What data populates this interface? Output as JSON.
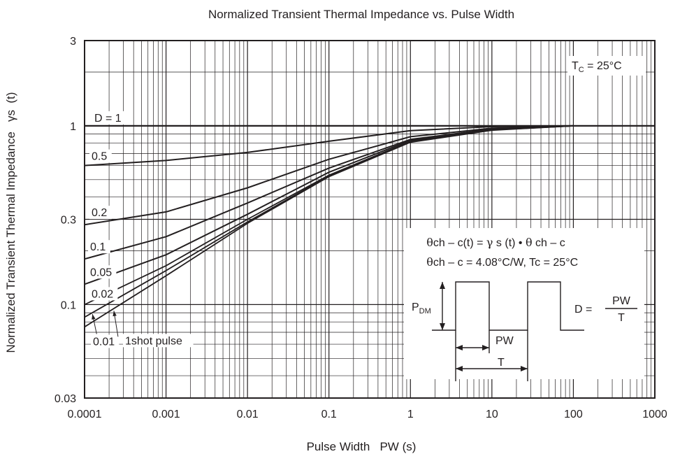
{
  "chart_data": {
    "type": "line",
    "title": "Normalized Transient Thermal Impedance vs. Pulse Width",
    "xlabel": "Pulse Width   PW (s)",
    "ylabel": "Normalized Transient Thermal Impedance   γs  (t)",
    "xscale": "log",
    "yscale": "log",
    "xlim": [
      0.0001,
      1000
    ],
    "ylim": [
      0.03,
      3
    ],
    "grid": true,
    "x_ticks": [
      "0.0001",
      "0.001",
      "0.01",
      "0.1",
      "1",
      "10",
      "100",
      "1000"
    ],
    "y_ticks": [
      "0.03",
      "0.1",
      "0.3",
      "1",
      "3"
    ],
    "series": [
      {
        "name": "D = 1",
        "x": [
          0.0001,
          1000
        ],
        "y": [
          1,
          1
        ]
      },
      {
        "name": "0.5",
        "x": [
          0.0001,
          0.001,
          0.01,
          0.1,
          1,
          10,
          100
        ],
        "y": [
          0.6,
          0.64,
          0.71,
          0.82,
          0.94,
          0.99,
          1.0
        ]
      },
      {
        "name": "0.2",
        "x": [
          0.0001,
          0.001,
          0.01,
          0.1,
          1,
          10,
          100
        ],
        "y": [
          0.28,
          0.33,
          0.45,
          0.65,
          0.87,
          0.97,
          1.0
        ]
      },
      {
        "name": "0.1",
        "x": [
          0.0001,
          0.001,
          0.01,
          0.1,
          1,
          10,
          100
        ],
        "y": [
          0.18,
          0.24,
          0.37,
          0.58,
          0.84,
          0.96,
          1.0
        ]
      },
      {
        "name": "0.05",
        "x": [
          0.0001,
          0.001,
          0.01,
          0.1,
          1,
          10,
          100
        ],
        "y": [
          0.13,
          0.19,
          0.32,
          0.55,
          0.83,
          0.95,
          1.0
        ]
      },
      {
        "name": "0.02",
        "x": [
          0.0001,
          0.001,
          0.01,
          0.1,
          1,
          10,
          100
        ],
        "y": [
          0.1,
          0.165,
          0.3,
          0.53,
          0.82,
          0.95,
          1.0
        ]
      },
      {
        "name": "0.01",
        "x": [
          0.0001,
          0.001,
          0.01,
          0.1,
          1,
          10,
          100
        ],
        "y": [
          0.085,
          0.155,
          0.29,
          0.525,
          0.815,
          0.95,
          1.0
        ]
      },
      {
        "name": "1shot pulse",
        "x": [
          0.0001,
          0.001,
          0.01,
          0.1,
          1,
          10,
          100
        ],
        "y": [
          0.075,
          0.145,
          0.285,
          0.52,
          0.81,
          0.945,
          1.0
        ]
      }
    ],
    "annotations": {
      "tc_label": "T",
      "tc_sub": "C",
      "tc_value": " = 25°C",
      "formula1_a": "θ",
      "formula1_b": "ch – c(t) = ",
      "formula1_c": "γ",
      "formula1_d": " s (t) • ",
      "formula1_e": "θ",
      "formula1_f": " ch – c",
      "formula2_a": "θ",
      "formula2_b": "ch – c = 4.08°C/W, Tc = 25°C",
      "pdm_main": "P",
      "pdm_sub": "DM",
      "pw_label": "PW",
      "t_label": "T",
      "duty_lhs": "D = ",
      "duty_num": "PW",
      "duty_den": "T"
    }
  }
}
